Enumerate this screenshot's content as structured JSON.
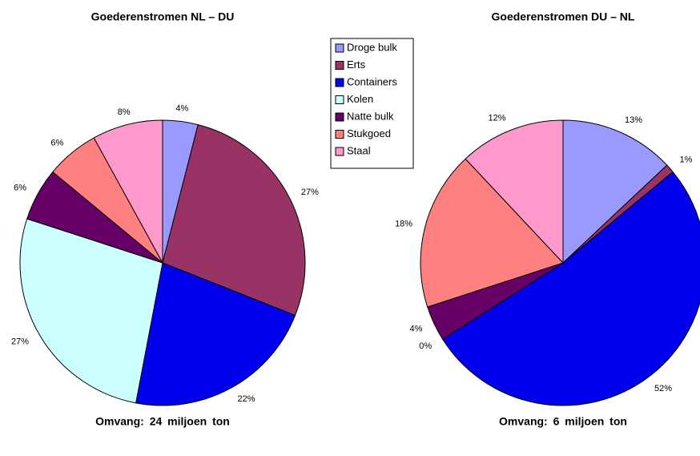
{
  "chart_data": [
    {
      "type": "pie",
      "title": "Goederenstromen NL – DU",
      "categories": [
        "Droge bulk",
        "Erts",
        "Containers",
        "Kolen",
        "Natte bulk",
        "Stukgoed",
        "Staal"
      ],
      "values": [
        4,
        27,
        22,
        27,
        6,
        6,
        8
      ],
      "value_labels": [
        "4%",
        "27%",
        "22%",
        "27%",
        "6%",
        "6%",
        "8%"
      ],
      "colors": [
        "#9999ff",
        "#993366",
        "#0000ee",
        "#ccffff",
        "#660066",
        "#ff8080",
        "#ff99cc"
      ],
      "note": "Omvang: 24 miljoen ton"
    },
    {
      "type": "pie",
      "title": "Goederenstromen DU – NL",
      "categories": [
        "Droge bulk",
        "Erts",
        "Containers",
        "Kolen",
        "Natte bulk",
        "Stukgoed",
        "Staal"
      ],
      "values": [
        13,
        1,
        52,
        0,
        4,
        18,
        12
      ],
      "value_labels": [
        "13%",
        "1%",
        "52%",
        "0%",
        "4%",
        "18%",
        "12%"
      ],
      "colors": [
        "#9999ff",
        "#993366",
        "#0000ee",
        "#ccffff",
        "#660066",
        "#ff8080",
        "#ff99cc"
      ],
      "note": "Omvang: 6 miljoen ton"
    }
  ]
}
